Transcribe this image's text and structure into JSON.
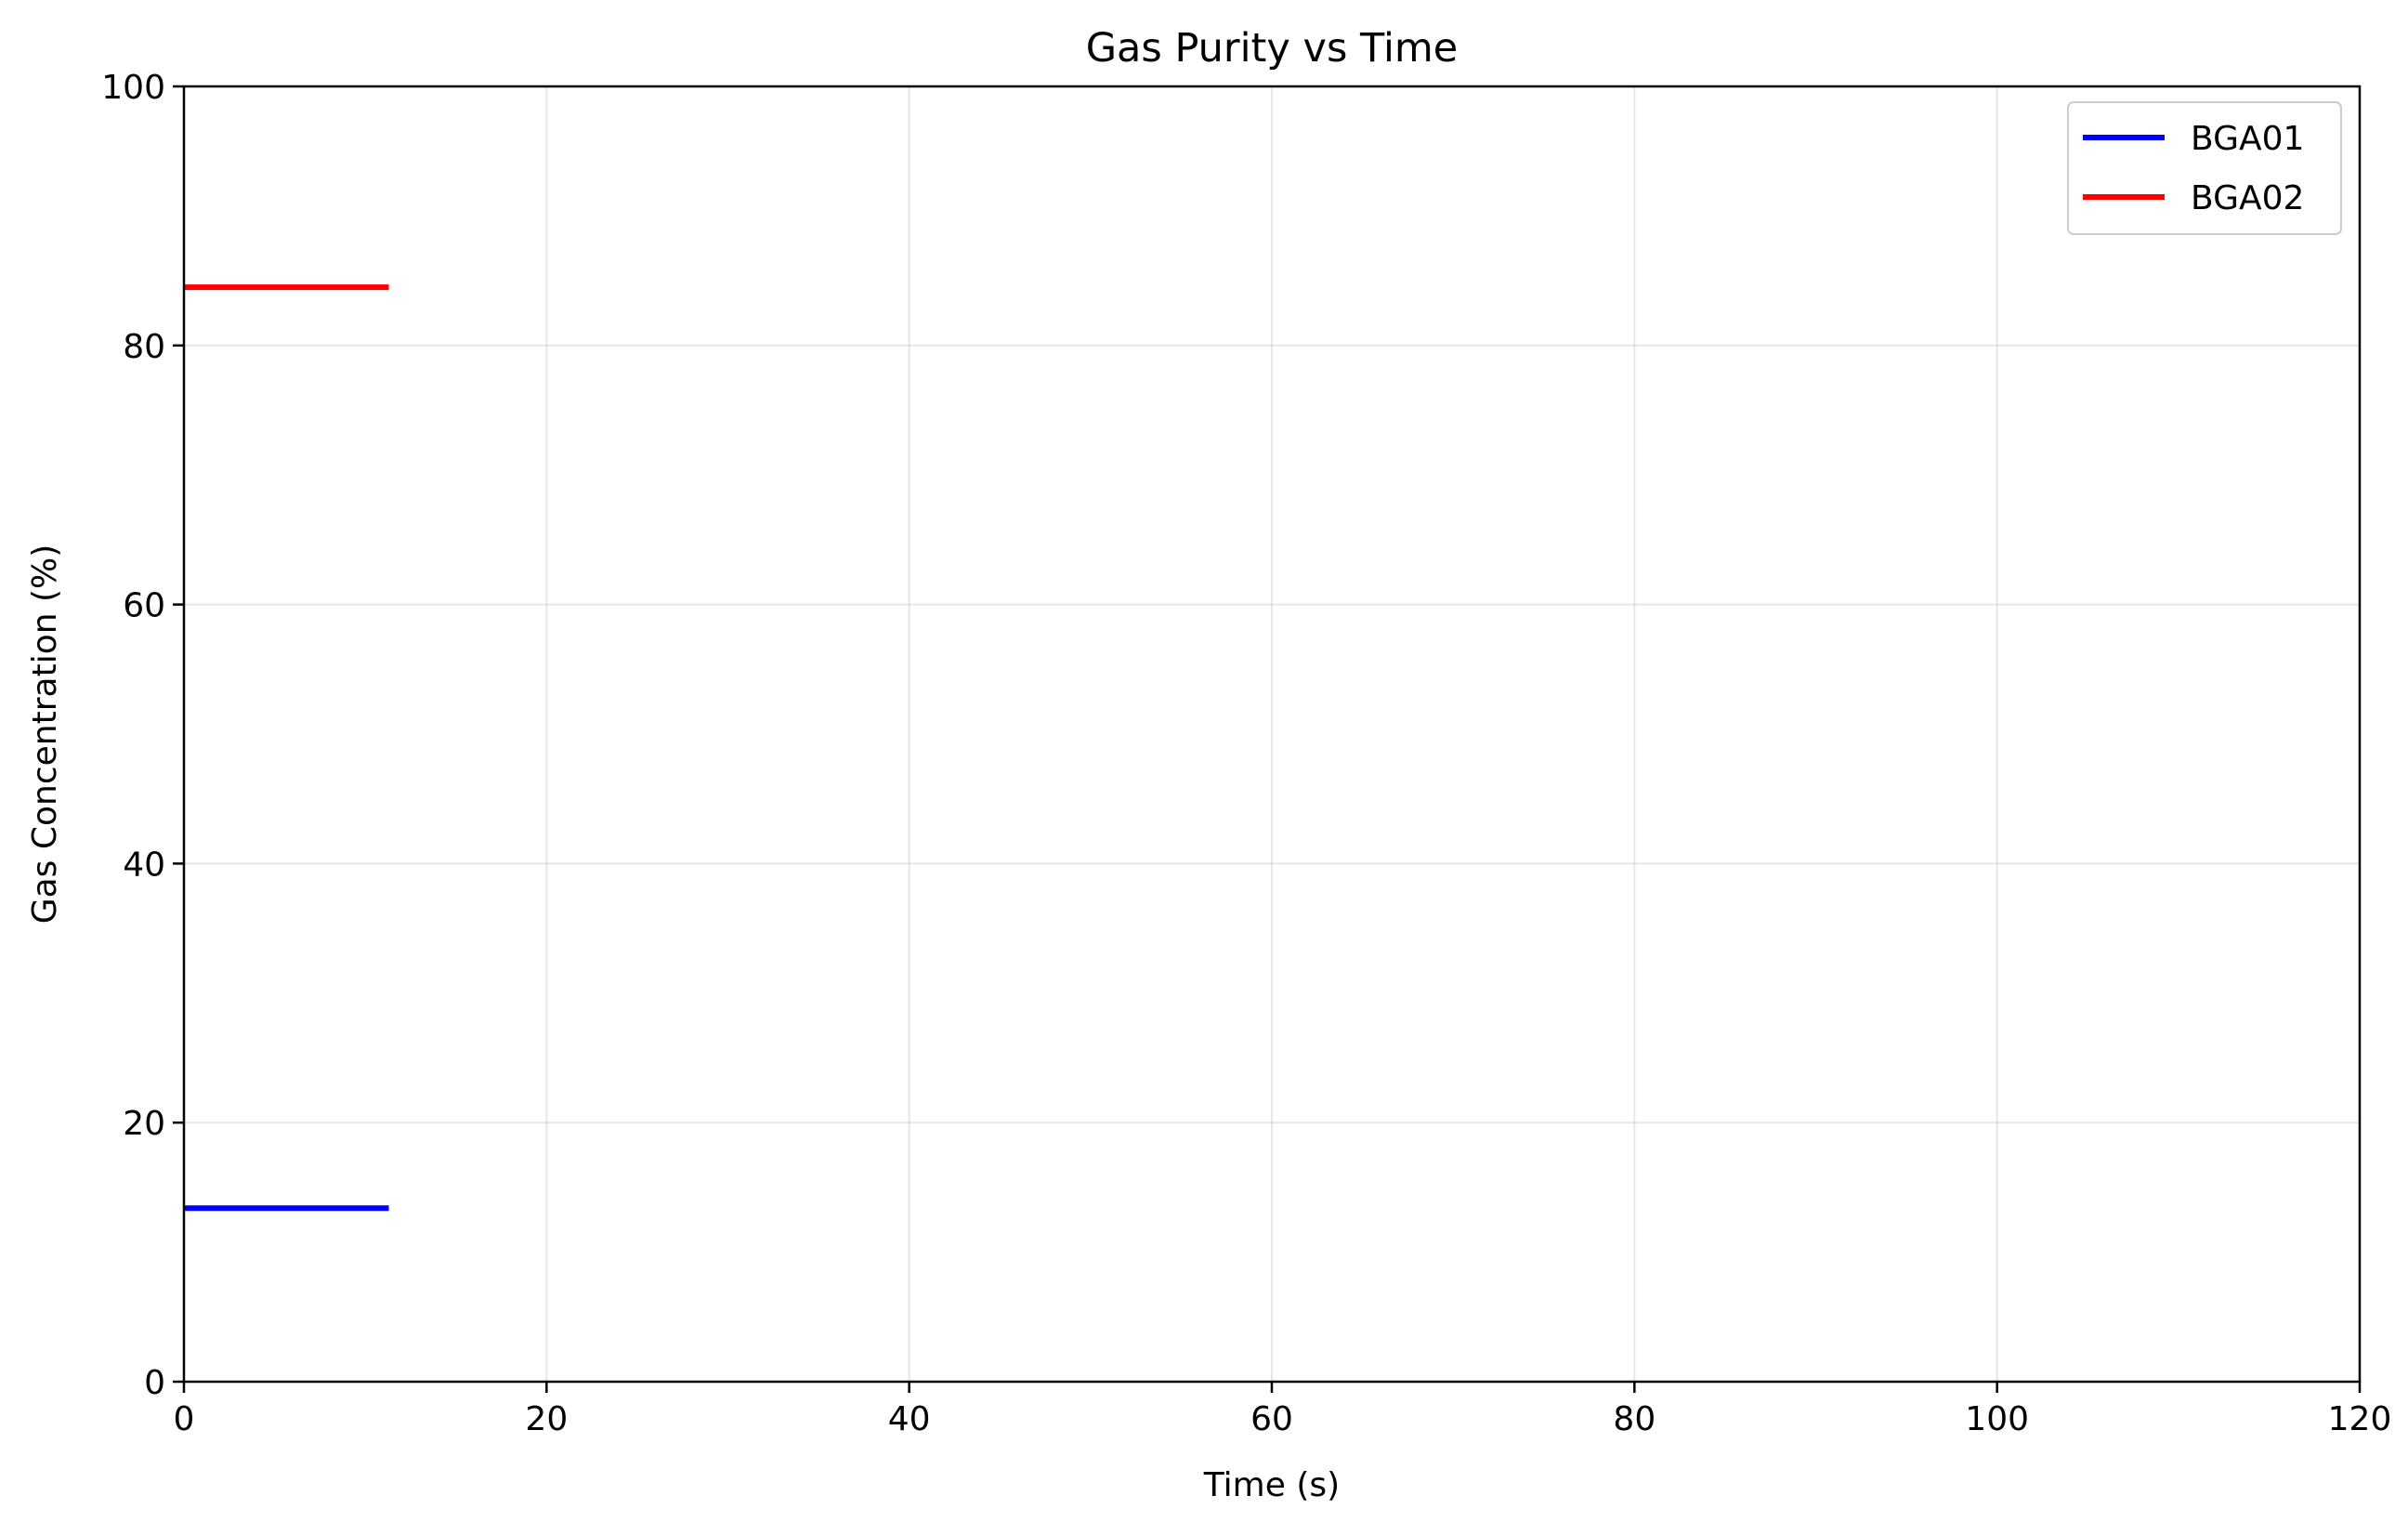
{
  "chart_data": {
    "type": "line",
    "title": "Gas Purity vs Time",
    "xlabel": "Time (s)",
    "ylabel": "Gas Concentration (%)",
    "xlim": [
      0,
      120
    ],
    "ylim": [
      0,
      100
    ],
    "xticks": [
      0,
      20,
      40,
      60,
      80,
      100,
      120
    ],
    "yticks": [
      0,
      20,
      40,
      60,
      80,
      100
    ],
    "xtick_labels": [
      "0",
      "20",
      "40",
      "60",
      "80",
      "100",
      "120"
    ],
    "ytick_labels": [
      "0",
      "20",
      "40",
      "60",
      "80",
      "100"
    ],
    "grid": true,
    "legend_position": "top-right",
    "series": [
      {
        "name": "BGA01",
        "color": "#0000ff",
        "x": [
          0,
          11.3
        ],
        "y": [
          13.4,
          13.4
        ]
      },
      {
        "name": "BGA02",
        "color": "#ff0000",
        "x": [
          0,
          11.3
        ],
        "y": [
          84.5,
          84.5
        ]
      }
    ]
  }
}
